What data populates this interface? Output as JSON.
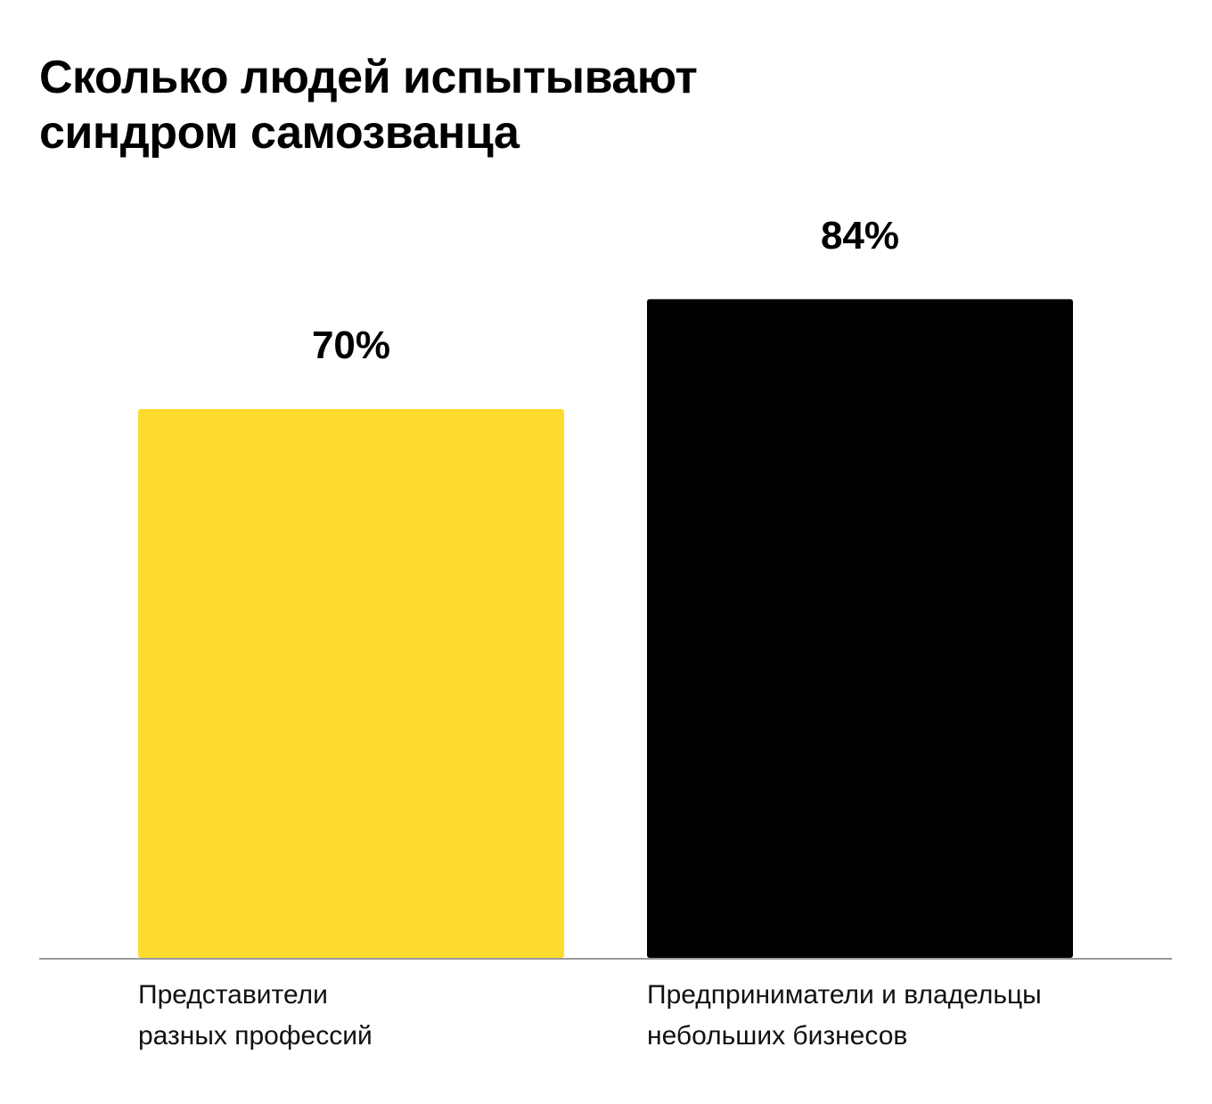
{
  "chart_data": {
    "type": "bar",
    "title": "Сколько людей испытывают синдром самозванца",
    "categories": [
      "Представители разных профессий",
      "Предприниматели и владельцы небольших бизнесов"
    ],
    "values": [
      70,
      84
    ],
    "value_labels": [
      "70%",
      "84%"
    ],
    "colors": [
      "#fddb2c",
      "#000000"
    ]
  }
}
